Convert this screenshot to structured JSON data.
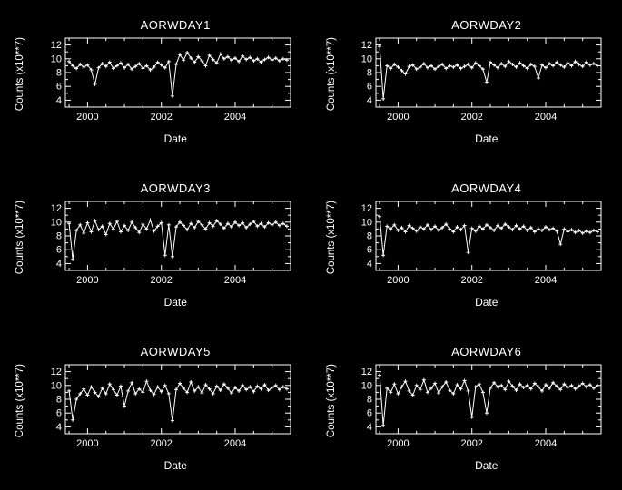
{
  "page": {
    "background": "#000000",
    "foreground": "#ffffff"
  },
  "chart_data": [
    {
      "type": "line",
      "title": "AORWDAY1",
      "xlabel": "Date",
      "ylabel": "Counts (x10**7)",
      "xlim": [
        1999.4,
        2005.5
      ],
      "ylim": [
        3,
        13
      ],
      "xticks": [
        2000,
        2002,
        2004
      ],
      "yticks": [
        4,
        6,
        8,
        10,
        12
      ],
      "marker": "plus",
      "line_color": "#ffffff",
      "x": [
        1999.5,
        1999.6,
        1999.7,
        1999.8,
        1999.9,
        2000.0,
        2000.1,
        2000.2,
        2000.3,
        2000.4,
        2000.5,
        2000.6,
        2000.7,
        2000.8,
        2000.9,
        2001.0,
        2001.1,
        2001.2,
        2001.3,
        2001.4,
        2001.5,
        2001.6,
        2001.7,
        2001.8,
        2001.9,
        2002.0,
        2002.1,
        2002.2,
        2002.3,
        2002.4,
        2002.5,
        2002.6,
        2002.7,
        2002.8,
        2002.9,
        2003.0,
        2003.1,
        2003.2,
        2003.3,
        2003.4,
        2003.5,
        2003.6,
        2003.7,
        2003.8,
        2003.9,
        2004.0,
        2004.1,
        2004.2,
        2004.3,
        2004.4,
        2004.5,
        2004.6,
        2004.7,
        2004.8,
        2004.9,
        2005.0,
        2005.1,
        2005.2,
        2005.3,
        2005.4
      ],
      "y": [
        9.6,
        9.0,
        8.6,
        9.2,
        8.8,
        9.1,
        8.4,
        6.3,
        8.7,
        9.3,
        8.9,
        9.5,
        8.6,
        9.0,
        9.4,
        8.7,
        9.2,
        8.5,
        8.9,
        9.3,
        8.6,
        9.0,
        8.4,
        8.8,
        9.5,
        9.1,
        8.7,
        9.6,
        4.6,
        9.2,
        10.6,
        9.8,
        10.9,
        10.1,
        9.5,
        10.3,
        9.7,
        9.0,
        10.5,
        9.9,
        9.4,
        10.7,
        10.0,
        10.3,
        9.8,
        10.1,
        9.6,
        10.4,
        9.9,
        10.2,
        9.7,
        10.0,
        9.5,
        9.9,
        10.2,
        9.8,
        10.1,
        9.7,
        10.0,
        9.8
      ]
    },
    {
      "type": "line",
      "title": "AORWDAY2",
      "xlabel": "Date",
      "ylabel": "Counts (x10**7)",
      "xlim": [
        1999.4,
        2005.5
      ],
      "ylim": [
        3,
        13
      ],
      "xticks": [
        2000,
        2002,
        2004
      ],
      "yticks": [
        4,
        6,
        8,
        10,
        12
      ],
      "marker": "plus",
      "line_color": "#ffffff",
      "x": [
        1999.5,
        1999.6,
        1999.7,
        1999.8,
        1999.9,
        2000.0,
        2000.1,
        2000.2,
        2000.3,
        2000.4,
        2000.5,
        2000.6,
        2000.7,
        2000.8,
        2000.9,
        2001.0,
        2001.1,
        2001.2,
        2001.3,
        2001.4,
        2001.5,
        2001.6,
        2001.7,
        2001.8,
        2001.9,
        2002.0,
        2002.1,
        2002.2,
        2002.3,
        2002.4,
        2002.5,
        2002.6,
        2002.7,
        2002.8,
        2002.9,
        2003.0,
        2003.1,
        2003.2,
        2003.3,
        2003.4,
        2003.5,
        2003.6,
        2003.7,
        2003.8,
        2003.9,
        2004.0,
        2004.1,
        2004.2,
        2004.3,
        2004.4,
        2004.5,
        2004.6,
        2004.7,
        2004.8,
        2004.9,
        2005.0,
        2005.1,
        2005.2,
        2005.3,
        2005.4
      ],
      "y": [
        11.8,
        4.2,
        9.0,
        8.6,
        9.2,
        8.8,
        8.3,
        7.8,
        8.9,
        9.1,
        8.5,
        8.8,
        9.3,
        8.7,
        9.0,
        8.5,
        8.9,
        9.2,
        8.6,
        9.0,
        8.8,
        9.1,
        8.6,
        8.9,
        9.2,
        8.7,
        9.4,
        9.0,
        8.5,
        6.6,
        9.5,
        9.1,
        8.7,
        9.3,
        8.9,
        9.6,
        9.2,
        8.8,
        9.4,
        9.0,
        8.6,
        9.2,
        8.9,
        7.2,
        9.1,
        8.7,
        9.3,
        9.0,
        9.5,
        9.1,
        8.8,
        9.4,
        9.0,
        9.6,
        9.2,
        8.9,
        9.5,
        9.1,
        9.3,
        9.0
      ]
    },
    {
      "type": "line",
      "title": "AORWDAY3",
      "xlabel": "Date",
      "ylabel": "Counts (x10**7)",
      "xlim": [
        1999.4,
        2005.5
      ],
      "ylim": [
        3,
        13
      ],
      "xticks": [
        2000,
        2002,
        2004
      ],
      "yticks": [
        4,
        6,
        8,
        10,
        12
      ],
      "marker": "plus",
      "line_color": "#ffffff",
      "x": [
        1999.5,
        1999.6,
        1999.7,
        1999.8,
        1999.9,
        2000.0,
        2000.1,
        2000.2,
        2000.3,
        2000.4,
        2000.5,
        2000.6,
        2000.7,
        2000.8,
        2000.9,
        2001.0,
        2001.1,
        2001.2,
        2001.3,
        2001.4,
        2001.5,
        2001.6,
        2001.7,
        2001.8,
        2001.9,
        2002.0,
        2002.1,
        2002.2,
        2002.3,
        2002.4,
        2002.5,
        2002.6,
        2002.7,
        2002.8,
        2002.9,
        2003.0,
        2003.1,
        2003.2,
        2003.3,
        2003.4,
        2003.5,
        2003.6,
        2003.7,
        2003.8,
        2003.9,
        2004.0,
        2004.1,
        2004.2,
        2004.3,
        2004.4,
        2004.5,
        2004.6,
        2004.7,
        2004.8,
        2004.9,
        2005.0,
        2005.1,
        2005.2,
        2005.3,
        2005.4
      ],
      "y": [
        9.8,
        4.6,
        8.8,
        9.6,
        8.4,
        9.9,
        8.6,
        10.2,
        8.9,
        9.4,
        8.2,
        9.8,
        9.0,
        10.1,
        8.6,
        9.5,
        8.8,
        10.0,
        9.2,
        8.5,
        9.7,
        9.0,
        10.3,
        8.7,
        9.4,
        9.9,
        5.2,
        9.6,
        5.0,
        9.3,
        10.0,
        9.5,
        8.9,
        9.8,
        9.2,
        10.1,
        9.6,
        9.0,
        9.9,
        9.4,
        10.2,
        9.7,
        9.1,
        9.8,
        9.3,
        10.0,
        9.5,
        9.9,
        9.2,
        9.7,
        10.1,
        9.4,
        9.8,
        9.3,
        9.9,
        9.6,
        10.0,
        9.5,
        9.8,
        9.4
      ]
    },
    {
      "type": "line",
      "title": "AORWDAY4",
      "xlabel": "Date",
      "ylabel": "Counts (x10**7)",
      "xlim": [
        1999.4,
        2005.5
      ],
      "ylim": [
        3,
        13
      ],
      "xticks": [
        2000,
        2002,
        2004
      ],
      "yticks": [
        4,
        6,
        8,
        10,
        12
      ],
      "marker": "plus",
      "line_color": "#ffffff",
      "x": [
        1999.5,
        1999.6,
        1999.7,
        1999.8,
        1999.9,
        2000.0,
        2000.1,
        2000.2,
        2000.3,
        2000.4,
        2000.5,
        2000.6,
        2000.7,
        2000.8,
        2000.9,
        2001.0,
        2001.1,
        2001.2,
        2001.3,
        2001.4,
        2001.5,
        2001.6,
        2001.7,
        2001.8,
        2001.9,
        2002.0,
        2002.1,
        2002.2,
        2002.3,
        2002.4,
        2002.5,
        2002.6,
        2002.7,
        2002.8,
        2002.9,
        2003.0,
        2003.1,
        2003.2,
        2003.3,
        2003.4,
        2003.5,
        2003.6,
        2003.7,
        2003.8,
        2003.9,
        2004.0,
        2004.1,
        2004.2,
        2004.3,
        2004.4,
        2004.5,
        2004.6,
        2004.7,
        2004.8,
        2004.9,
        2005.0,
        2005.1,
        2005.2,
        2005.3,
        2005.4
      ],
      "y": [
        10.8,
        5.2,
        9.4,
        9.0,
        9.6,
        8.8,
        9.2,
        8.6,
        9.5,
        9.1,
        8.7,
        9.3,
        9.0,
        9.6,
        8.9,
        9.4,
        8.8,
        9.2,
        9.7,
        9.0,
        8.6,
        9.3,
        8.9,
        9.5,
        5.6,
        9.1,
        8.7,
        9.4,
        9.0,
        9.6,
        9.2,
        8.8,
        9.5,
        9.1,
        9.7,
        9.3,
        8.9,
        9.5,
        9.0,
        9.4,
        8.8,
        9.2,
        8.6,
        9.0,
        8.8,
        9.3,
        8.9,
        9.1,
        8.7,
        6.8,
        9.0,
        8.6,
        8.9,
        8.5,
        8.8,
        8.4,
        8.7,
        8.5,
        8.8,
        8.6
      ]
    },
    {
      "type": "line",
      "title": "AORWDAY5",
      "xlabel": "Date",
      "ylabel": "Counts (x10**7)",
      "xlim": [
        1999.4,
        2005.5
      ],
      "ylim": [
        3,
        13
      ],
      "xticks": [
        2000,
        2002,
        2004
      ],
      "yticks": [
        4,
        6,
        8,
        10,
        12
      ],
      "marker": "plus",
      "line_color": "#ffffff",
      "x": [
        1999.5,
        1999.6,
        1999.7,
        1999.8,
        1999.9,
        2000.0,
        2000.1,
        2000.2,
        2000.3,
        2000.4,
        2000.5,
        2000.6,
        2000.7,
        2000.8,
        2000.9,
        2001.0,
        2001.1,
        2001.2,
        2001.3,
        2001.4,
        2001.5,
        2001.6,
        2001.7,
        2001.8,
        2001.9,
        2002.0,
        2002.1,
        2002.2,
        2002.3,
        2002.4,
        2002.5,
        2002.6,
        2002.7,
        2002.8,
        2002.9,
        2003.0,
        2003.1,
        2003.2,
        2003.3,
        2003.4,
        2003.5,
        2003.6,
        2003.7,
        2003.8,
        2003.9,
        2004.0,
        2004.1,
        2004.2,
        2004.3,
        2004.4,
        2004.5,
        2004.6,
        2004.7,
        2004.8,
        2004.9,
        2005.0,
        2005.1,
        2005.2,
        2005.3,
        2005.4
      ],
      "y": [
        9.2,
        5.0,
        8.0,
        8.8,
        9.5,
        8.6,
        9.8,
        9.0,
        8.4,
        9.6,
        8.8,
        10.2,
        9.4,
        8.6,
        9.9,
        7.0,
        9.2,
        10.4,
        8.8,
        9.5,
        9.0,
        10.6,
        9.3,
        8.7,
        9.8,
        9.1,
        10.0,
        8.8,
        4.9,
        9.4,
        10.3,
        9.6,
        9.0,
        10.5,
        9.2,
        9.8,
        8.9,
        10.1,
        9.5,
        8.8,
        9.9,
        9.3,
        10.2,
        9.6,
        8.9,
        9.7,
        9.2,
        10.0,
        9.4,
        9.8,
        9.1,
        9.9,
        9.5,
        10.1,
        9.3,
        9.7,
        10.0,
        9.4,
        9.8,
        9.5
      ]
    },
    {
      "type": "line",
      "title": "AORWDAY6",
      "xlabel": "Date",
      "ylabel": "Counts (x10**7)",
      "xlim": [
        1999.4,
        2005.5
      ],
      "ylim": [
        3,
        13
      ],
      "xticks": [
        2000,
        2002,
        2004
      ],
      "yticks": [
        4,
        6,
        8,
        10,
        12
      ],
      "marker": "plus",
      "line_color": "#ffffff",
      "x": [
        1999.5,
        1999.6,
        1999.7,
        1999.8,
        1999.9,
        2000.0,
        2000.1,
        2000.2,
        2000.3,
        2000.4,
        2000.5,
        2000.6,
        2000.7,
        2000.8,
        2000.9,
        2001.0,
        2001.1,
        2001.2,
        2001.3,
        2001.4,
        2001.5,
        2001.6,
        2001.7,
        2001.8,
        2001.9,
        2002.0,
        2002.1,
        2002.2,
        2002.3,
        2002.4,
        2002.5,
        2002.6,
        2002.7,
        2002.8,
        2002.9,
        2003.0,
        2003.1,
        2003.2,
        2003.3,
        2003.4,
        2003.5,
        2003.6,
        2003.7,
        2003.8,
        2003.9,
        2004.0,
        2004.1,
        2004.2,
        2004.3,
        2004.4,
        2004.5,
        2004.6,
        2004.7,
        2004.8,
        2004.9,
        2005.0,
        2005.1,
        2005.2,
        2005.3,
        2005.4
      ],
      "y": [
        11.5,
        4.2,
        9.6,
        9.0,
        10.2,
        8.8,
        9.8,
        10.6,
        9.2,
        8.6,
        10.0,
        9.4,
        10.8,
        9.0,
        9.6,
        10.3,
        8.9,
        9.8,
        10.5,
        9.3,
        8.8,
        10.1,
        9.5,
        10.7,
        9.2,
        5.4,
        9.8,
        10.2,
        9.0,
        6.0,
        9.6,
        10.4,
        9.8,
        10.0,
        9.4,
        10.6,
        9.9,
        9.3,
        10.2,
        9.7,
        10.0,
        9.5,
        10.3,
        9.8,
        9.2,
        10.1,
        9.6,
        10.4,
        9.9,
        9.4,
        10.2,
        9.7,
        10.0,
        9.5,
        9.9,
        10.3,
        9.8,
        10.1,
        9.6,
        10.0
      ]
    }
  ]
}
